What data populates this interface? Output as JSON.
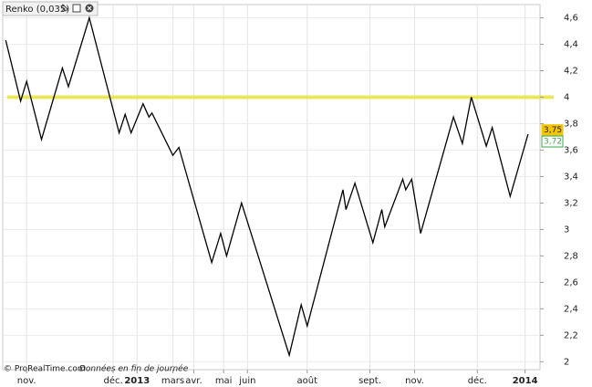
{
  "chart_data": {
    "type": "line",
    "title": "Renko (0,035)",
    "source": "© ProRealTime.com",
    "source_note": "Données en fin de journée",
    "x": [
      1,
      6,
      8,
      13,
      20,
      22,
      29,
      39,
      41,
      43,
      47,
      49,
      50,
      57,
      59,
      70,
      73,
      75,
      80,
      96,
      100,
      102,
      114,
      115,
      118,
      124,
      127,
      128,
      134,
      135,
      137,
      140,
      151,
      154,
      157,
      162,
      164,
      170,
      176
    ],
    "series": [
      {
        "name": "Renko",
        "color": "#000000",
        "values": [
          4.43,
          3.97,
          4.12,
          3.68,
          4.22,
          4.08,
          4.6,
          3.73,
          3.87,
          3.73,
          3.95,
          3.85,
          3.88,
          3.56,
          3.62,
          2.75,
          2.97,
          2.8,
          3.2,
          2.05,
          2.43,
          2.27,
          3.3,
          3.15,
          3.35,
          2.9,
          3.15,
          3.02,
          3.38,
          3.3,
          3.38,
          2.97,
          3.85,
          3.65,
          4.0,
          3.63,
          3.77,
          3.25,
          3.72
        ]
      }
    ],
    "xlim": [
      0,
      180
    ],
    "xticks": [
      {
        "value": 8,
        "label": "nov."
      },
      {
        "value": 37,
        "label": "déc."
      },
      {
        "value": 45,
        "label": "2013"
      },
      {
        "value": 57,
        "label": "mars"
      },
      {
        "value": 64,
        "label": "avr."
      },
      {
        "value": 74,
        "label": "mai"
      },
      {
        "value": 82,
        "label": "juin"
      },
      {
        "value": 102,
        "label": "août"
      },
      {
        "value": 123,
        "label": "sept."
      },
      {
        "value": 138,
        "label": "nov."
      },
      {
        "value": 159,
        "label": "déc."
      },
      {
        "value": 175,
        "label": "2014"
      }
    ],
    "bold_xticks": [
      "2013",
      "2014"
    ],
    "ylim": [
      1.94,
      4.7
    ],
    "yticks": [
      {
        "value": 4.6,
        "label": "4,6"
      },
      {
        "value": 4.4,
        "label": "4,4"
      },
      {
        "value": 4.2,
        "label": "4,2"
      },
      4,
      {
        "value": 3.8,
        "label": "3,8"
      },
      {
        "value": 3.6,
        "label": "3,6"
      },
      {
        "value": 3.4,
        "label": "3,4"
      },
      {
        "value": 3.2,
        "label": "3,2"
      },
      3,
      {
        "value": 2.8,
        "label": "2,8"
      },
      {
        "value": 2.6,
        "label": "2,6"
      },
      {
        "value": 2.4,
        "label": "2,4"
      },
      {
        "value": 2.2,
        "label": "2,2"
      },
      2
    ],
    "grid": true,
    "trend_line": {
      "value": 4,
      "color": "#e6e33a"
    },
    "price_labels": [
      {
        "value": 3.75,
        "label": "3,75",
        "color": "#f3c500"
      },
      {
        "value": 3.72,
        "label": "3,72",
        "color": "#3aa84a"
      }
    ]
  }
}
